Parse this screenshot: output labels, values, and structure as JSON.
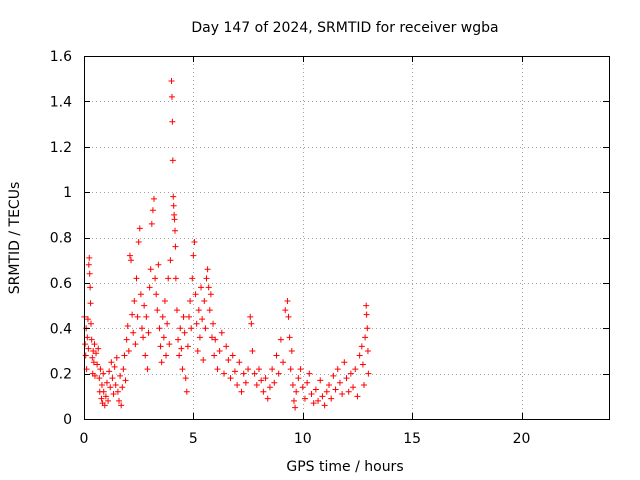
{
  "chart_data": {
    "type": "scatter",
    "title": "Day 147 of 2024, SRMTID for receiver wgba",
    "xlabel": "GPS time / hours",
    "ylabel": "SRMTID / TECUs",
    "xlim": [
      0,
      24
    ],
    "ylim": [
      0,
      1.6
    ],
    "xticks": [
      0,
      5,
      10,
      15,
      20
    ],
    "xtick_labels": [
      "0",
      "5",
      "10",
      "15",
      "20"
    ],
    "yticks": [
      0,
      0.2,
      0.4,
      0.6,
      0.8,
      1.0,
      1.2,
      1.4,
      1.6
    ],
    "ytick_labels": [
      "0",
      "0.2",
      "0.4",
      "0.6",
      "0.8",
      "1",
      "1.2",
      "1.4",
      "1.6"
    ],
    "grid": true,
    "marker": "+",
    "marker_color": "#ff0000",
    "series": [
      {
        "name": "SRMTID",
        "points": [
          [
            0.02,
            0.45
          ],
          [
            0.05,
            0.33
          ],
          [
            0.08,
            0.28
          ],
          [
            0.1,
            0.4
          ],
          [
            0.12,
            0.22
          ],
          [
            0.15,
            0.36
          ],
          [
            0.18,
            0.44
          ],
          [
            0.2,
            0.31
          ],
          [
            0.22,
            0.68
          ],
          [
            0.24,
            0.71
          ],
          [
            0.26,
            0.64
          ],
          [
            0.28,
            0.58
          ],
          [
            0.3,
            0.51
          ],
          [
            0.32,
            0.42
          ],
          [
            0.35,
            0.35
          ],
          [
            0.38,
            0.27
          ],
          [
            0.4,
            0.2
          ],
          [
            0.42,
            0.3
          ],
          [
            0.45,
            0.25
          ],
          [
            0.48,
            0.33
          ],
          [
            0.5,
            0.19
          ],
          [
            0.55,
            0.29
          ],
          [
            0.6,
            0.24
          ],
          [
            0.65,
            0.31
          ],
          [
            0.7,
            0.18
          ],
          [
            0.72,
            0.12
          ],
          [
            0.75,
            0.22
          ],
          [
            0.8,
            0.09
          ],
          [
            0.82,
            0.15
          ],
          [
            0.85,
            0.07
          ],
          [
            0.88,
            0.2
          ],
          [
            0.9,
            0.12
          ],
          [
            0.95,
            0.06
          ],
          [
            1.0,
            0.1
          ],
          [
            1.05,
            0.16
          ],
          [
            1.1,
            0.08
          ],
          [
            1.15,
            0.21
          ],
          [
            1.2,
            0.14
          ],
          [
            1.25,
            0.25
          ],
          [
            1.3,
            0.18
          ],
          [
            1.35,
            0.11
          ],
          [
            1.4,
            0.23
          ],
          [
            1.45,
            0.15
          ],
          [
            1.5,
            0.27
          ],
          [
            1.55,
            0.12
          ],
          [
            1.6,
            0.08
          ],
          [
            1.65,
            0.19
          ],
          [
            1.7,
            0.06
          ],
          [
            1.75,
            0.14
          ],
          [
            1.8,
            0.22
          ],
          [
            1.85,
            0.28
          ],
          [
            1.9,
            0.17
          ],
          [
            1.95,
            0.35
          ],
          [
            2.0,
            0.41
          ],
          [
            2.05,
            0.3
          ],
          [
            2.1,
            0.72
          ],
          [
            2.15,
            0.7
          ],
          [
            2.2,
            0.46
          ],
          [
            2.25,
            0.38
          ],
          [
            2.3,
            0.52
          ],
          [
            2.35,
            0.33
          ],
          [
            2.4,
            0.62
          ],
          [
            2.45,
            0.45
          ],
          [
            2.5,
            0.78
          ],
          [
            2.55,
            0.84
          ],
          [
            2.6,
            0.55
          ],
          [
            2.65,
            0.4
          ],
          [
            2.7,
            0.36
          ],
          [
            2.75,
            0.5
          ],
          [
            2.8,
            0.28
          ],
          [
            2.85,
            0.45
          ],
          [
            2.9,
            0.22
          ],
          [
            2.95,
            0.38
          ],
          [
            3.0,
            0.58
          ],
          [
            3.05,
            0.66
          ],
          [
            3.1,
            0.86
          ],
          [
            3.15,
            0.92
          ],
          [
            3.2,
            0.97
          ],
          [
            3.25,
            0.62
          ],
          [
            3.3,
            0.55
          ],
          [
            3.35,
            0.48
          ],
          [
            3.4,
            0.68
          ],
          [
            3.45,
            0.4
          ],
          [
            3.5,
            0.32
          ],
          [
            3.55,
            0.25
          ],
          [
            3.6,
            0.45
          ],
          [
            3.65,
            0.36
          ],
          [
            3.7,
            0.52
          ],
          [
            3.75,
            0.28
          ],
          [
            3.8,
            0.42
          ],
          [
            3.85,
            0.62
          ],
          [
            3.9,
            0.33
          ],
          [
            3.95,
            0.7
          ],
          [
            4.0,
            1.49
          ],
          [
            4.02,
            1.42
          ],
          [
            4.04,
            1.31
          ],
          [
            4.06,
            1.14
          ],
          [
            4.08,
            0.98
          ],
          [
            4.1,
            0.94
          ],
          [
            4.12,
            0.9
          ],
          [
            4.14,
            0.88
          ],
          [
            4.16,
            0.83
          ],
          [
            4.18,
            0.76
          ],
          [
            4.2,
            0.62
          ],
          [
            4.25,
            0.48
          ],
          [
            4.3,
            0.35
          ],
          [
            4.35,
            0.28
          ],
          [
            4.4,
            0.4
          ],
          [
            4.45,
            0.31
          ],
          [
            4.5,
            0.22
          ],
          [
            4.55,
            0.45
          ],
          [
            4.6,
            0.38
          ],
          [
            4.65,
            0.18
          ],
          [
            4.7,
            0.12
          ],
          [
            4.75,
            0.32
          ],
          [
            4.8,
            0.45
          ],
          [
            4.85,
            0.52
          ],
          [
            4.9,
            0.4
          ],
          [
            4.95,
            0.62
          ],
          [
            5.0,
            0.72
          ],
          [
            5.05,
            0.78
          ],
          [
            5.1,
            0.55
          ],
          [
            5.15,
            0.42
          ],
          [
            5.2,
            0.3
          ],
          [
            5.25,
            0.48
          ],
          [
            5.3,
            0.36
          ],
          [
            5.35,
            0.58
          ],
          [
            5.4,
            0.44
          ],
          [
            5.45,
            0.26
          ],
          [
            5.5,
            0.52
          ],
          [
            5.55,
            0.4
          ],
          [
            5.6,
            0.62
          ],
          [
            5.65,
            0.66
          ],
          [
            5.7,
            0.58
          ],
          [
            5.75,
            0.48
          ],
          [
            5.8,
            0.55
          ],
          [
            5.85,
            0.36
          ],
          [
            5.9,
            0.42
          ],
          [
            5.95,
            0.28
          ],
          [
            6.0,
            0.35
          ],
          [
            6.1,
            0.22
          ],
          [
            6.2,
            0.3
          ],
          [
            6.3,
            0.38
          ],
          [
            6.4,
            0.2
          ],
          [
            6.5,
            0.32
          ],
          [
            6.6,
            0.26
          ],
          [
            6.7,
            0.18
          ],
          [
            6.8,
            0.28
          ],
          [
            6.9,
            0.21
          ],
          [
            7.0,
            0.15
          ],
          [
            7.1,
            0.25
          ],
          [
            7.2,
            0.12
          ],
          [
            7.3,
            0.2
          ],
          [
            7.4,
            0.16
          ],
          [
            7.5,
            0.22
          ],
          [
            7.6,
            0.45
          ],
          [
            7.65,
            0.42
          ],
          [
            7.7,
            0.3
          ],
          [
            7.8,
            0.2
          ],
          [
            7.9,
            0.15
          ],
          [
            8.0,
            0.22
          ],
          [
            8.1,
            0.17
          ],
          [
            8.2,
            0.12
          ],
          [
            8.3,
            0.18
          ],
          [
            8.4,
            0.09
          ],
          [
            8.5,
            0.14
          ],
          [
            8.6,
            0.22
          ],
          [
            8.7,
            0.16
          ],
          [
            8.8,
            0.28
          ],
          [
            8.9,
            0.2
          ],
          [
            9.0,
            0.35
          ],
          [
            9.1,
            0.25
          ],
          [
            9.2,
            0.48
          ],
          [
            9.3,
            0.52
          ],
          [
            9.35,
            0.45
          ],
          [
            9.4,
            0.36
          ],
          [
            9.45,
            0.22
          ],
          [
            9.5,
            0.3
          ],
          [
            9.55,
            0.15
          ],
          [
            9.6,
            0.08
          ],
          [
            9.65,
            0.05
          ],
          [
            9.7,
            0.12
          ],
          [
            9.8,
            0.18
          ],
          [
            9.9,
            0.22
          ],
          [
            10.0,
            0.14
          ],
          [
            10.1,
            0.09
          ],
          [
            10.2,
            0.16
          ],
          [
            10.3,
            0.2
          ],
          [
            10.4,
            0.11
          ],
          [
            10.5,
            0.07
          ],
          [
            10.6,
            0.13
          ],
          [
            10.7,
            0.08
          ],
          [
            10.8,
            0.17
          ],
          [
            10.9,
            0.1
          ],
          [
            11.0,
            0.06
          ],
          [
            11.1,
            0.12
          ],
          [
            11.2,
            0.15
          ],
          [
            11.3,
            0.09
          ],
          [
            11.4,
            0.19
          ],
          [
            11.5,
            0.13
          ],
          [
            11.6,
            0.22
          ],
          [
            11.7,
            0.16
          ],
          [
            11.8,
            0.11
          ],
          [
            11.9,
            0.25
          ],
          [
            12.0,
            0.18
          ],
          [
            12.1,
            0.12
          ],
          [
            12.2,
            0.2
          ],
          [
            12.3,
            0.14
          ],
          [
            12.4,
            0.22
          ],
          [
            12.5,
            0.1
          ],
          [
            12.6,
            0.28
          ],
          [
            12.7,
            0.32
          ],
          [
            12.75,
            0.24
          ],
          [
            12.8,
            0.15
          ],
          [
            12.85,
            0.36
          ],
          [
            12.9,
            0.5
          ],
          [
            12.92,
            0.46
          ],
          [
            12.95,
            0.4
          ],
          [
            12.98,
            0.3
          ],
          [
            13.0,
            0.2
          ]
        ]
      }
    ]
  }
}
